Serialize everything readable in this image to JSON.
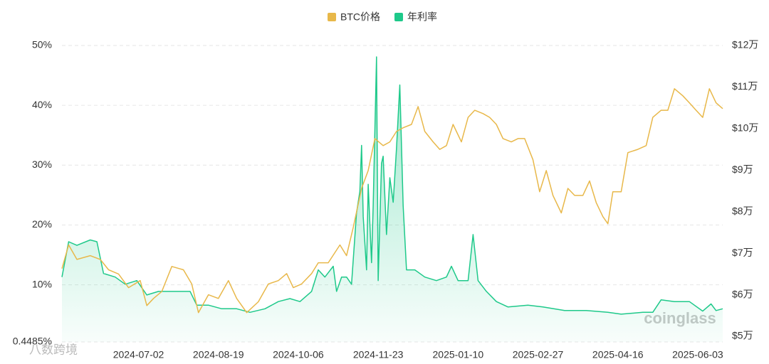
{
  "chart_data": {
    "type": "line",
    "watermark": "coinglass",
    "watermark_2": "八数跨境",
    "xlim": [
      "2024-05-17",
      "2025-06-18"
    ],
    "xticks": [
      "2024-07-02",
      "2024-08-19",
      "2024-10-06",
      "2024-11-23",
      "2025-01-10",
      "2025-02-27",
      "2025-04-16",
      "2025-06-03"
    ],
    "ylim": [
      0.4485,
      50
    ],
    "yticks": [
      {
        "value": 0.4485,
        "label": "0.4485%"
      },
      {
        "value": 10,
        "label": "10%"
      },
      {
        "value": 20,
        "label": "20%"
      },
      {
        "value": 30,
        "label": "30%"
      },
      {
        "value": 40,
        "label": "40%"
      },
      {
        "value": 50,
        "label": "50%"
      }
    ],
    "y2lim": [
      48630,
      120000
    ],
    "y2ticks": [
      {
        "value": 50000,
        "label": "$5万"
      },
      {
        "value": 60000,
        "label": "$6万"
      },
      {
        "value": 70000,
        "label": "$7万"
      },
      {
        "value": 80000,
        "label": "$8万"
      },
      {
        "value": 90000,
        "label": "$9万"
      },
      {
        "value": 100000,
        "label": "$10万"
      },
      {
        "value": 110000,
        "label": "$11万"
      },
      {
        "value": 120000,
        "label": "$12万"
      }
    ],
    "grid": true,
    "legend": "top",
    "series": [
      {
        "name": "BTC价格",
        "color": "#e8b84a",
        "axis": "y2",
        "area": false,
        "x": [
          "2024-05-17",
          "2024-05-21",
          "2024-05-26",
          "2024-06-03",
          "2024-06-09",
          "2024-06-14",
          "2024-06-20",
          "2024-06-26",
          "2024-07-03",
          "2024-07-07",
          "2024-07-11",
          "2024-07-16",
          "2024-07-22",
          "2024-07-29",
          "2024-08-03",
          "2024-08-07",
          "2024-08-13",
          "2024-08-19",
          "2024-08-25",
          "2024-08-30",
          "2024-09-05",
          "2024-09-12",
          "2024-09-18",
          "2024-09-24",
          "2024-09-29",
          "2024-10-03",
          "2024-10-08",
          "2024-10-14",
          "2024-10-18",
          "2024-10-24",
          "2024-10-31",
          "2024-11-04",
          "2024-11-08",
          "2024-11-13",
          "2024-11-17",
          "2024-11-21",
          "2024-11-26",
          "2024-11-30",
          "2024-12-04",
          "2024-12-08",
          "2024-12-13",
          "2024-12-17",
          "2024-12-21",
          "2024-12-26",
          "2024-12-30",
          "2025-01-03",
          "2025-01-07",
          "2025-01-12",
          "2025-01-16",
          "2025-01-20",
          "2025-01-25",
          "2025-01-29",
          "2025-02-02",
          "2025-02-06",
          "2025-02-11",
          "2025-02-15",
          "2025-02-19",
          "2025-02-24",
          "2025-02-28",
          "2025-03-04",
          "2025-03-08",
          "2025-03-13",
          "2025-03-17",
          "2025-03-21",
          "2025-03-26",
          "2025-03-30",
          "2025-04-03",
          "2025-04-07",
          "2025-04-10",
          "2025-04-13",
          "2025-04-18",
          "2025-04-22",
          "2025-04-28",
          "2025-05-03",
          "2025-05-07",
          "2025-05-12",
          "2025-05-16",
          "2025-05-20",
          "2025-05-25",
          "2025-05-29",
          "2025-06-02",
          "2025-06-06",
          "2025-06-10",
          "2025-06-14",
          "2025-06-18"
        ],
        "values": [
          66300,
          72000,
          68500,
          69400,
          68500,
          66000,
          65000,
          61700,
          63400,
          57400,
          59100,
          60800,
          66800,
          66000,
          62600,
          55700,
          60000,
          59100,
          63400,
          59100,
          55700,
          58300,
          62600,
          63400,
          65100,
          61700,
          62600,
          65100,
          67700,
          67700,
          72000,
          69400,
          76200,
          85600,
          89900,
          97600,
          95900,
          96800,
          99300,
          100200,
          101000,
          105300,
          99300,
          96800,
          95000,
          95900,
          101000,
          96800,
          102700,
          104400,
          103600,
          102700,
          101000,
          97600,
          96800,
          97600,
          97600,
          92500,
          84800,
          89900,
          83900,
          79700,
          85600,
          83900,
          83900,
          87400,
          82200,
          78800,
          77100,
          84800,
          84800,
          94200,
          95000,
          95900,
          102700,
          104400,
          104400,
          109600,
          107900,
          106200,
          104400,
          102700,
          109600,
          106200,
          104800
        ]
      },
      {
        "name": "年利率",
        "color": "#1ec98a",
        "axis": "y",
        "area": true,
        "x": [
          "2024-05-17",
          "2024-05-21",
          "2024-05-26",
          "2024-06-03",
          "2024-06-07",
          "2024-06-11",
          "2024-06-18",
          "2024-06-24",
          "2024-07-01",
          "2024-07-07",
          "2024-07-14",
          "2024-07-22",
          "2024-08-02",
          "2024-08-06",
          "2024-08-13",
          "2024-08-21",
          "2024-08-30",
          "2024-09-07",
          "2024-09-16",
          "2024-09-24",
          "2024-10-01",
          "2024-10-07",
          "2024-10-14",
          "2024-10-18",
          "2024-10-22",
          "2024-10-27",
          "2024-10-29",
          "2024-11-01",
          "2024-11-04",
          "2024-11-07",
          "2024-11-10",
          "2024-11-12",
          "2024-11-13",
          "2024-11-14",
          "2024-11-16",
          "2024-11-17",
          "2024-11-19",
          "2024-11-20",
          "2024-11-22",
          "2024-11-23",
          "2024-11-25",
          "2024-11-26",
          "2024-11-28",
          "2024-11-30",
          "2024-12-02",
          "2024-12-04",
          "2024-12-06",
          "2024-12-08",
          "2024-12-10",
          "2024-12-15",
          "2024-12-21",
          "2024-12-28",
          "2025-01-03",
          "2025-01-06",
          "2025-01-10",
          "2025-01-16",
          "2025-01-19",
          "2025-01-22",
          "2025-01-27",
          "2025-02-02",
          "2025-02-09",
          "2025-02-21",
          "2025-03-02",
          "2025-03-15",
          "2025-03-28",
          "2025-04-10",
          "2025-04-18",
          "2025-05-01",
          "2025-05-07",
          "2025-05-12",
          "2025-05-20",
          "2025-05-29",
          "2025-06-06",
          "2025-06-11",
          "2025-06-14",
          "2025-06-18"
        ],
        "values": [
          11.3,
          17.2,
          16.6,
          17.5,
          17.2,
          11.9,
          11.3,
          10.1,
          10.7,
          8.3,
          8.9,
          8.9,
          8.9,
          6.6,
          6.6,
          6.0,
          6.0,
          5.4,
          6.0,
          7.2,
          7.7,
          7.2,
          8.9,
          12.5,
          11.3,
          13.1,
          8.9,
          11.3,
          11.3,
          10.1,
          22,
          25.6,
          33.3,
          21.4,
          12.5,
          26.8,
          13.7,
          23.2,
          48.1,
          10.7,
          30.3,
          31.5,
          18.4,
          27.9,
          23.8,
          32.7,
          43.4,
          23.2,
          12.5,
          12.5,
          11.3,
          10.7,
          11.3,
          13.1,
          10.7,
          10.7,
          18.4,
          10.7,
          8.9,
          7.2,
          6.3,
          6.6,
          6.3,
          5.7,
          5.7,
          5.4,
          5.1,
          5.4,
          5.4,
          7.5,
          7.2,
          7.2,
          5.6,
          6.8,
          5.7,
          6.0
        ]
      }
    ]
  }
}
